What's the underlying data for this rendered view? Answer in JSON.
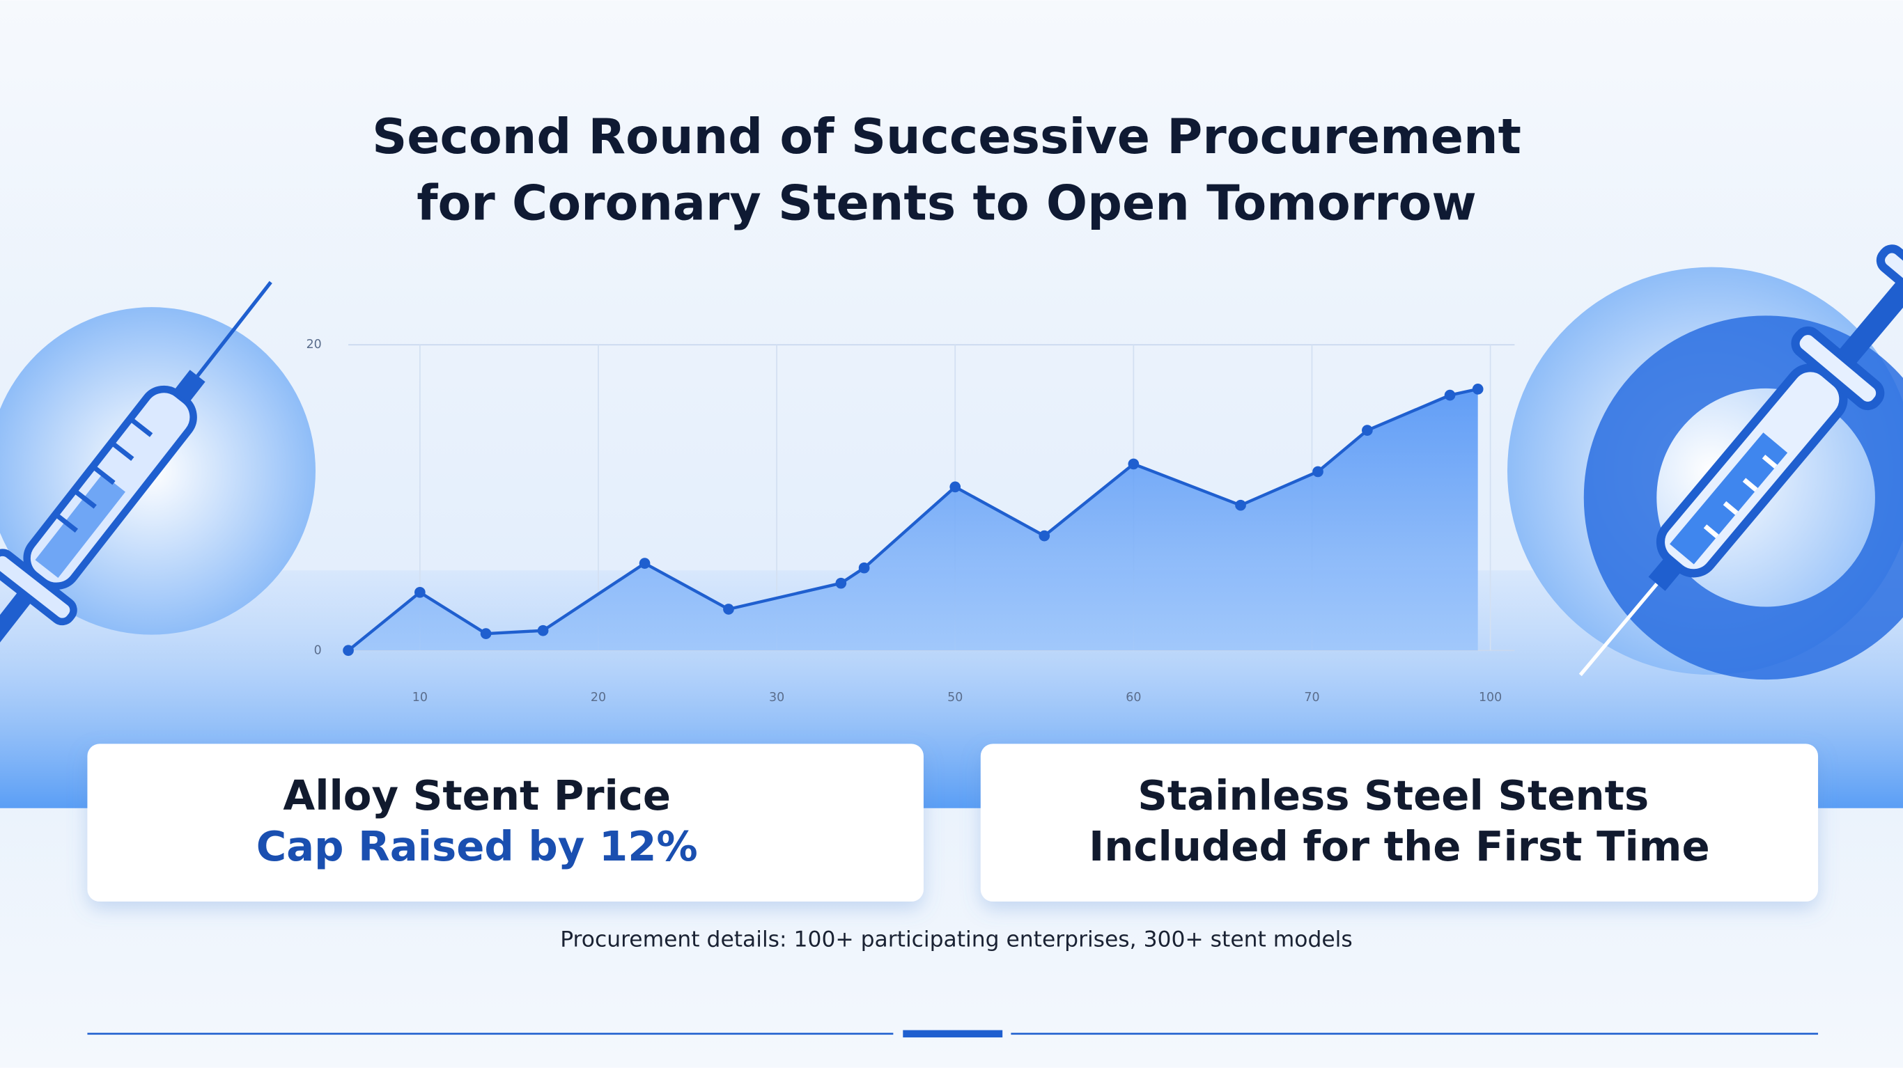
{
  "header": {
    "title": [
      "Second Round of Successive Procurement",
      "for Coronary Stents to Open Tomorrow"
    ]
  },
  "chart_data": {
    "type": "area",
    "color": "#1f5fcf",
    "x": [
      0,
      10,
      13.7,
      16.9,
      22.6,
      27.3,
      37.2,
      39.8,
      50,
      55,
      60,
      66,
      71,
      79.3,
      93.2,
      97.9
    ],
    "values": [
      0,
      3.8,
      1.1,
      1.3,
      5.7,
      2.7,
      4.4,
      5.4,
      10.7,
      7.5,
      12.2,
      9.5,
      11.7,
      14.4,
      16.7,
      17.1
    ],
    "xlim": [
      0,
      100
    ],
    "ylim": [
      0,
      20
    ],
    "xticks": [
      10,
      20,
      30,
      50,
      60,
      70,
      100
    ],
    "yticks": [
      0,
      20
    ],
    "grid": true
  },
  "cards": [
    {
      "lines": [
        "Alloy Stent Price",
        "Cap Raised by 12%"
      ]
    },
    {
      "lines": [
        "Stainless Steel Stents",
        "Included for the First Time"
      ]
    }
  ],
  "footer": {
    "text": "Procurement details: 100+ participating enterprises, 300+ stent models"
  }
}
